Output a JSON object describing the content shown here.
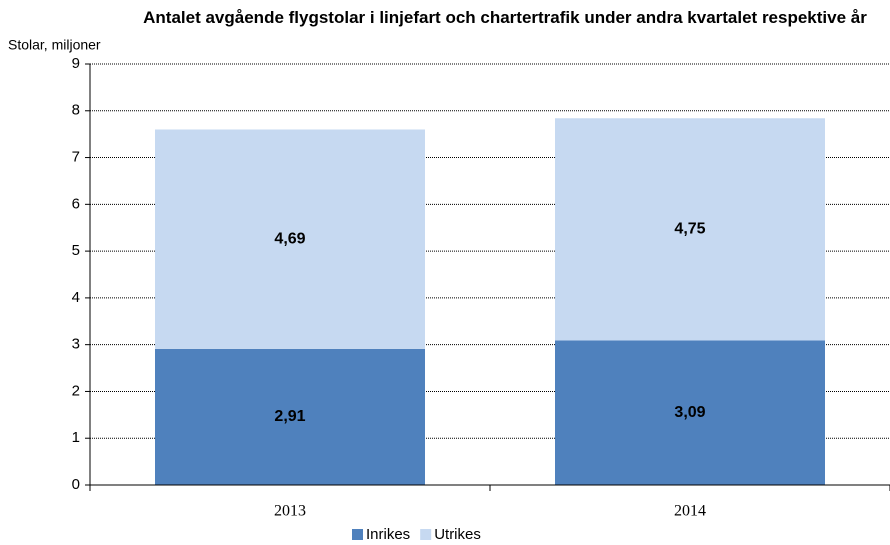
{
  "chart_data": {
    "type": "stacked_bar",
    "title": "Antalet avgående flygstolar i linjefart och chartertrafik under andra kvartalet respektive år",
    "y_label": "Stolar, miljoner",
    "categories": [
      "2013",
      "2014"
    ],
    "series": [
      {
        "name": "Inrikes",
        "color": "#4f81bd",
        "values": [
          2.91,
          3.09
        ],
        "value_labels": [
          "2,91",
          "3,09"
        ]
      },
      {
        "name": "Utrikes",
        "color": "#c6d9f1",
        "values": [
          4.69,
          4.75
        ],
        "value_labels": [
          "4,69",
          "4,75"
        ]
      }
    ],
    "ylim": [
      0,
      9
    ],
    "yticks": [
      0,
      1,
      2,
      3,
      4,
      5,
      6,
      7,
      8,
      9
    ],
    "grid": true,
    "legend": "bottom"
  }
}
